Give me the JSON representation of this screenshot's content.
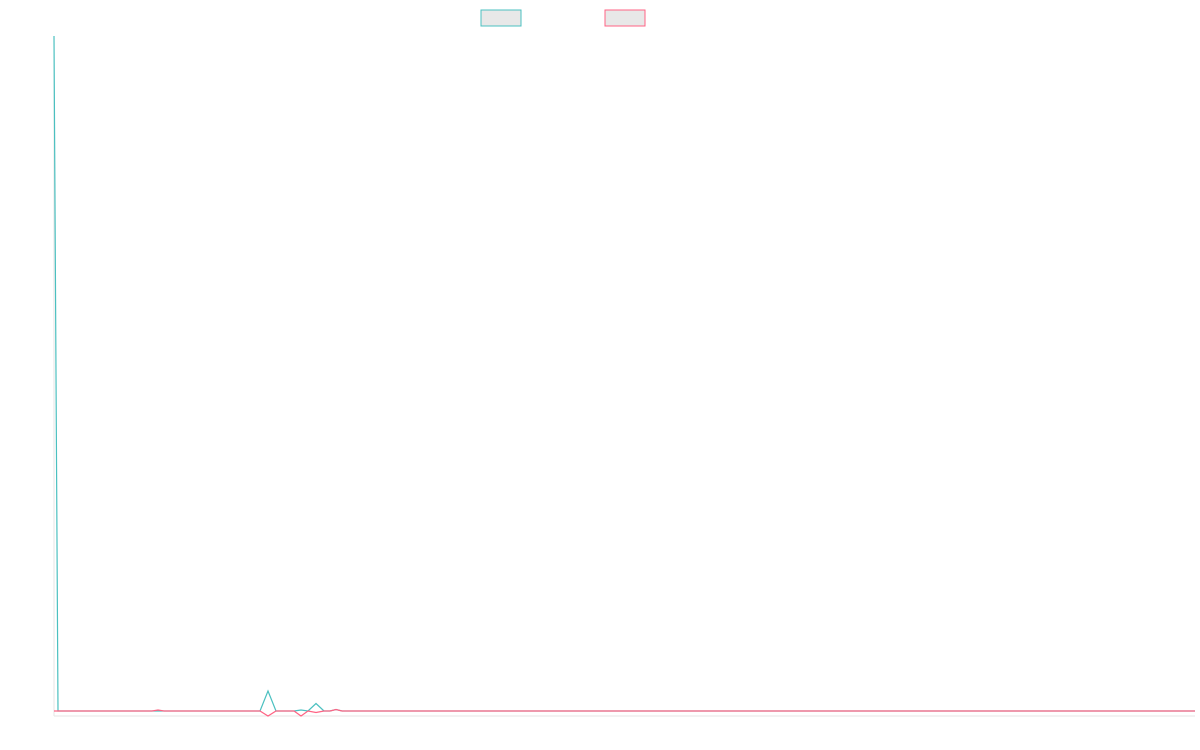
{
  "chart_data": {
    "type": "line",
    "x": [
      0,
      4,
      98,
      104,
      110,
      206,
      214,
      222,
      240,
      247,
      254,
      262,
      270,
      276,
      282,
      288,
      1141
    ],
    "xlim": [
      0,
      1141
    ],
    "ylim": [
      -1,
      135
    ],
    "series": [
      {
        "color": "#4bc0c0",
        "values": [
          135,
          0,
          0,
          0,
          0,
          0,
          4,
          0,
          0,
          0.2,
          0,
          1.5,
          0,
          0,
          0.3,
          0,
          0
        ]
      },
      {
        "color": "#ff6384",
        "values": [
          0,
          0,
          0,
          0.2,
          0,
          0,
          -1,
          0,
          0,
          -1,
          0,
          -0.3,
          0,
          0,
          0.3,
          0,
          0
        ]
      }
    ]
  }
}
